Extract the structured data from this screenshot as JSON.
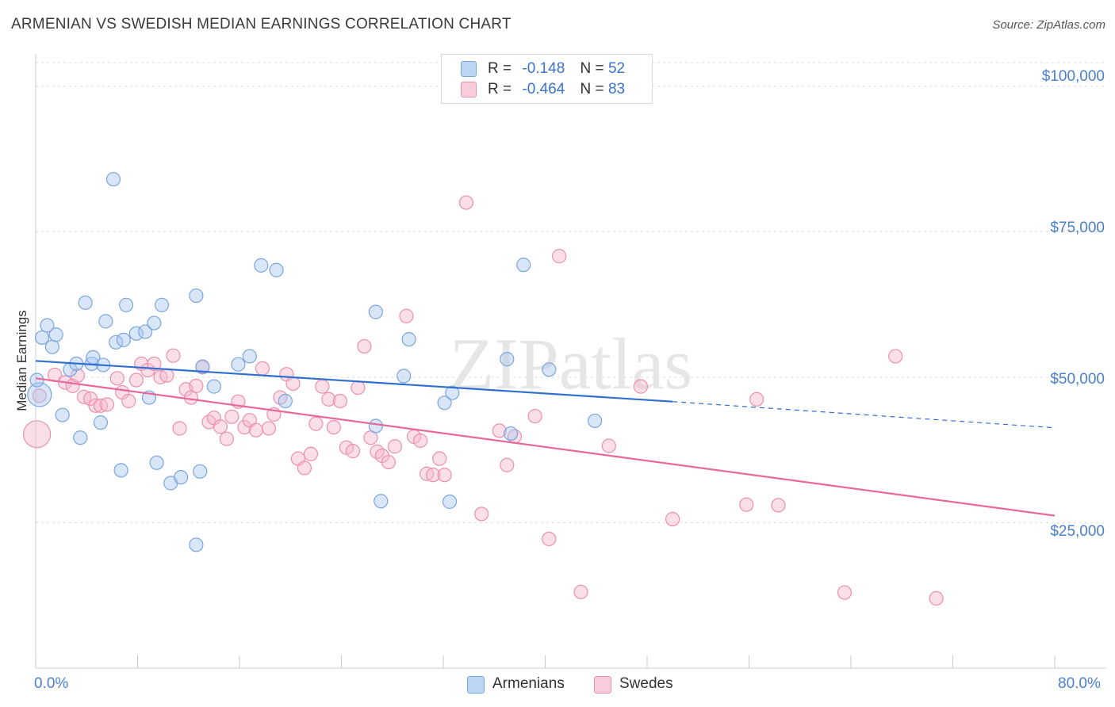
{
  "title": "ARMENIAN VS SWEDISH MEDIAN EARNINGS CORRELATION CHART",
  "source": "Source: ZipAtlas.com",
  "watermark": "ZIPatlas",
  "legend_top": {
    "rows": [
      {
        "r_label": "R =",
        "r_value": "-0.148",
        "n_label": "N =",
        "n_value": "52"
      },
      {
        "r_label": "R =",
        "r_value": "-0.464",
        "n_label": "N =",
        "n_value": "83"
      }
    ]
  },
  "legend_bottom": [
    "Armenians",
    "Swedes"
  ],
  "colors": {
    "armenian_fill": "#a9c8ef",
    "armenian_stroke": "#7aa6e0",
    "armenian_line": "#2f6fcf",
    "swede_fill": "#f6b8cb",
    "swede_stroke": "#ec8fae",
    "swede_line": "#e8689a",
    "tick_text": "#4a7fcf",
    "grid": "#dcdcdc"
  },
  "chart_data": {
    "type": "scatter",
    "title": "ARMENIAN VS SWEDISH MEDIAN EARNINGS CORRELATION CHART",
    "xlabel": "",
    "ylabel": "Median Earnings",
    "xlim": [
      0,
      80
    ],
    "ylim": [
      0,
      105000
    ],
    "x_tick_labels": [
      "0.0%",
      "80.0%"
    ],
    "y_tick_labels": [
      "$100,000",
      "$75,000",
      "$50,000",
      "$25,000"
    ],
    "y_ticks": [
      100000,
      75000,
      50000,
      25000
    ],
    "grid": true,
    "legend_position": "top-center",
    "series": [
      {
        "name": "Armenians",
        "r": -0.148,
        "n": 52,
        "trend": {
          "x": [
            0,
            50
          ],
          "y": [
            52800,
            45800
          ],
          "dashed_to": [
            80,
            41300
          ]
        },
        "points": [
          [
            0.3,
            47000
          ],
          [
            0.5,
            56800
          ],
          [
            0.9,
            58900
          ],
          [
            1.3,
            55200
          ],
          [
            1.6,
            57300
          ],
          [
            2.1,
            43500
          ],
          [
            2.7,
            51300
          ],
          [
            3.2,
            52300
          ],
          [
            3.5,
            39600
          ],
          [
            3.9,
            62800
          ],
          [
            4.4,
            52300
          ],
          [
            4.5,
            53400
          ],
          [
            5.1,
            42200
          ],
          [
            5.3,
            52100
          ],
          [
            5.5,
            59600
          ],
          [
            6.1,
            84000
          ],
          [
            6.3,
            56000
          ],
          [
            6.7,
            34000
          ],
          [
            6.9,
            56400
          ],
          [
            7.1,
            62400
          ],
          [
            7.9,
            57500
          ],
          [
            8.6,
            57800
          ],
          [
            8.9,
            46500
          ],
          [
            9.3,
            59300
          ],
          [
            9.5,
            35300
          ],
          [
            9.9,
            62400
          ],
          [
            10.6,
            31800
          ],
          [
            11.4,
            32800
          ],
          [
            12.6,
            21200
          ],
          [
            12.6,
            64000
          ],
          [
            12.9,
            33800
          ],
          [
            13.1,
            51800
          ],
          [
            14.0,
            48400
          ],
          [
            15.9,
            52200
          ],
          [
            16.8,
            53600
          ],
          [
            17.7,
            69200
          ],
          [
            18.9,
            68400
          ],
          [
            19.6,
            45900
          ],
          [
            26.7,
            61200
          ],
          [
            26.7,
            41600
          ],
          [
            27.1,
            28700
          ],
          [
            28.9,
            50200
          ],
          [
            29.3,
            56500
          ],
          [
            32.1,
            45600
          ],
          [
            32.5,
            28600
          ],
          [
            32.7,
            47300
          ],
          [
            37.0,
            53100
          ],
          [
            37.3,
            40300
          ],
          [
            38.3,
            69300
          ],
          [
            40.3,
            51300
          ],
          [
            43.9,
            42500
          ],
          [
            0.1,
            49500
          ]
        ]
      },
      {
        "name": "Swedes",
        "r": -0.464,
        "n": 83,
        "trend": {
          "x": [
            0,
            80
          ],
          "y": [
            49800,
            26200
          ]
        },
        "points": [
          [
            0.1,
            40200
          ],
          [
            0.3,
            46800
          ],
          [
            1.5,
            50400
          ],
          [
            2.3,
            49100
          ],
          [
            2.9,
            48500
          ],
          [
            3.3,
            50300
          ],
          [
            3.8,
            46600
          ],
          [
            4.3,
            46300
          ],
          [
            4.7,
            45100
          ],
          [
            5.1,
            45100
          ],
          [
            5.6,
            45300
          ],
          [
            6.4,
            49800
          ],
          [
            6.8,
            47400
          ],
          [
            7.3,
            45900
          ],
          [
            7.9,
            49500
          ],
          [
            8.3,
            52300
          ],
          [
            8.8,
            51200
          ],
          [
            9.3,
            52300
          ],
          [
            9.8,
            50000
          ],
          [
            10.3,
            50300
          ],
          [
            10.8,
            53700
          ],
          [
            11.3,
            41200
          ],
          [
            11.8,
            47900
          ],
          [
            12.2,
            46500
          ],
          [
            12.6,
            48500
          ],
          [
            13.1,
            51700
          ],
          [
            13.6,
            42300
          ],
          [
            14.0,
            43000
          ],
          [
            14.5,
            41500
          ],
          [
            15.0,
            39400
          ],
          [
            15.4,
            43200
          ],
          [
            15.9,
            45800
          ],
          [
            16.4,
            41400
          ],
          [
            16.8,
            42600
          ],
          [
            17.3,
            40900
          ],
          [
            17.8,
            51500
          ],
          [
            18.3,
            41200
          ],
          [
            18.7,
            43600
          ],
          [
            19.2,
            46500
          ],
          [
            19.7,
            50500
          ],
          [
            20.2,
            48900
          ],
          [
            20.6,
            36000
          ],
          [
            21.1,
            34400
          ],
          [
            21.6,
            36800
          ],
          [
            22.0,
            42000
          ],
          [
            22.5,
            48400
          ],
          [
            23.0,
            46200
          ],
          [
            23.4,
            41400
          ],
          [
            23.9,
            45900
          ],
          [
            24.4,
            37900
          ],
          [
            24.9,
            37300
          ],
          [
            25.3,
            48200
          ],
          [
            25.8,
            55300
          ],
          [
            26.3,
            39600
          ],
          [
            26.8,
            37200
          ],
          [
            27.2,
            36500
          ],
          [
            27.7,
            35400
          ],
          [
            28.2,
            38100
          ],
          [
            29.1,
            60500
          ],
          [
            29.7,
            39800
          ],
          [
            30.2,
            39100
          ],
          [
            30.7,
            33400
          ],
          [
            31.2,
            33200
          ],
          [
            31.7,
            36000
          ],
          [
            32.1,
            33200
          ],
          [
            33.8,
            80000
          ],
          [
            35.0,
            26500
          ],
          [
            36.4,
            40800
          ],
          [
            37.0,
            34900
          ],
          [
            37.6,
            39800
          ],
          [
            39.2,
            43300
          ],
          [
            40.3,
            22200
          ],
          [
            41.1,
            70800
          ],
          [
            42.8,
            13100
          ],
          [
            45.0,
            38200
          ],
          [
            47.5,
            48400
          ],
          [
            50.0,
            25600
          ],
          [
            55.8,
            28100
          ],
          [
            56.6,
            46200
          ],
          [
            58.3,
            28000
          ],
          [
            63.5,
            13000
          ],
          [
            67.5,
            53600
          ],
          [
            70.7,
            12000
          ]
        ]
      }
    ]
  }
}
